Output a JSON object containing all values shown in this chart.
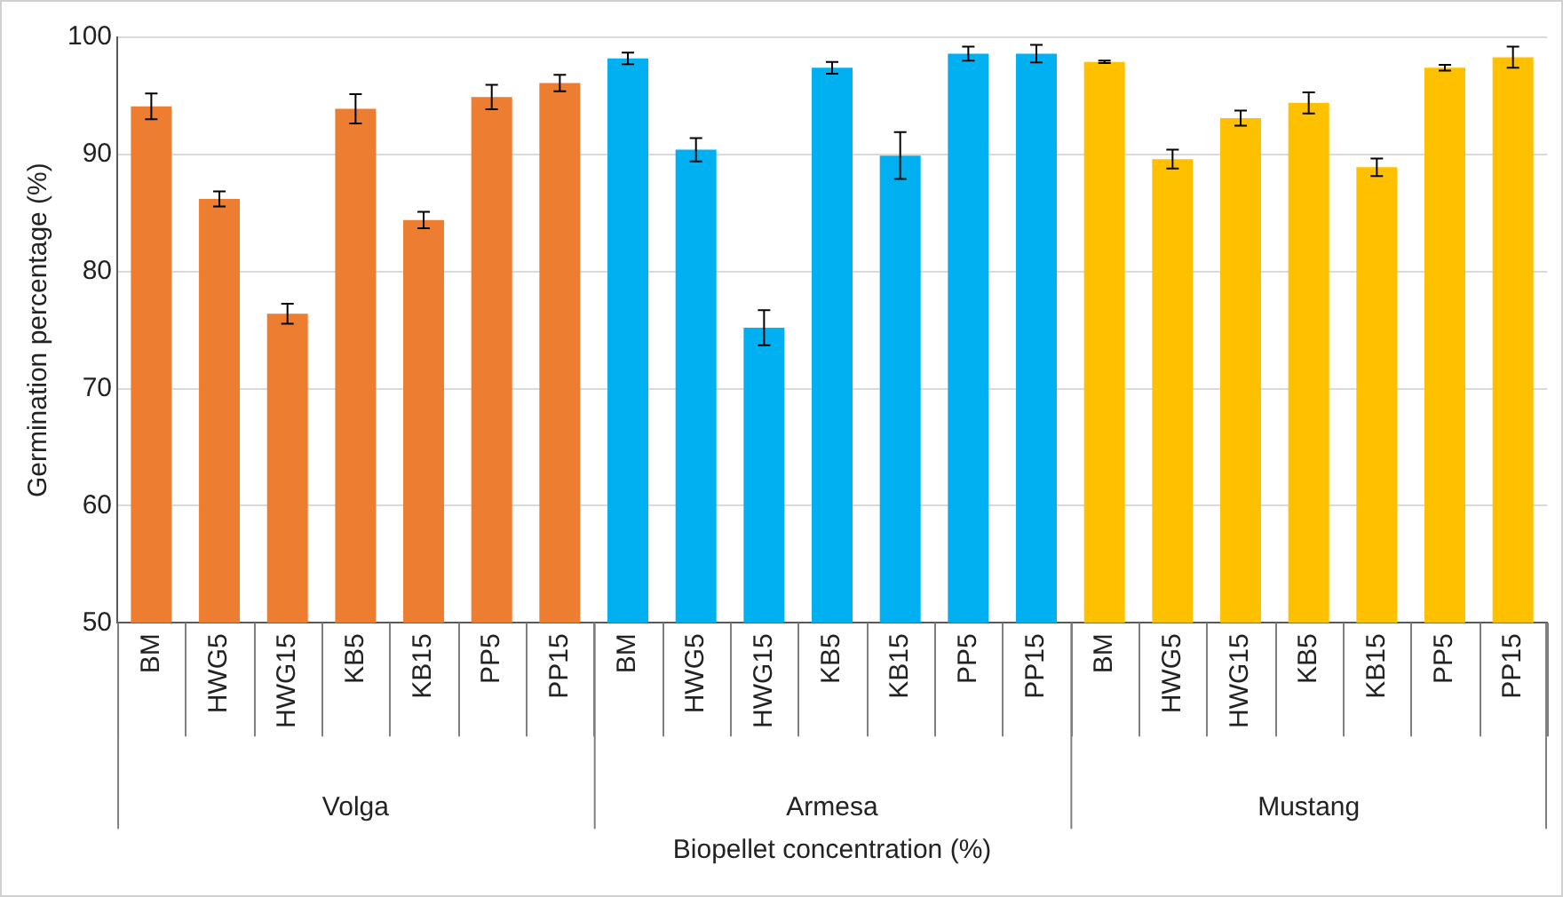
{
  "chart_data": {
    "type": "bar",
    "xlabel": "Biopellet concentration (%)",
    "ylabel": "Germination percentage (%)",
    "categories": [
      "BM",
      "HWG5",
      "HWG15",
      "KB5",
      "KB15",
      "PP5",
      "PP15",
      "BM",
      "HWG5",
      "HWG15",
      "KB5",
      "KB15",
      "PP5",
      "PP15",
      "BM",
      "HWG5",
      "HWG15",
      "KB5",
      "KB15",
      "PP5",
      "PP15"
    ],
    "series": [
      {
        "name": "Volga",
        "color": "#ed7d31",
        "values": [
          94.1,
          86.2,
          76.4,
          93.9,
          84.4,
          94.9,
          96.1,
          null,
          null,
          null,
          null,
          null,
          null,
          null,
          null,
          null,
          null,
          null,
          null,
          null,
          null
        ],
        "errors": [
          1.1,
          0.65,
          0.85,
          1.25,
          0.7,
          1.05,
          0.7,
          null,
          null,
          null,
          null,
          null,
          null,
          null,
          null,
          null,
          null,
          null,
          null,
          null,
          null
        ]
      },
      {
        "name": "Armesa",
        "color": "#00b0f0",
        "values": [
          null,
          null,
          null,
          null,
          null,
          null,
          null,
          98.2,
          90.4,
          75.2,
          97.4,
          89.9,
          98.6,
          98.6,
          null,
          null,
          null,
          null,
          null,
          null,
          null
        ],
        "errors": [
          null,
          null,
          null,
          null,
          null,
          null,
          null,
          0.5,
          1.0,
          1.5,
          0.5,
          2.0,
          0.6,
          0.75,
          null,
          null,
          null,
          null,
          null,
          null,
          null
        ]
      },
      {
        "name": "Mustang",
        "color": "#ffc000",
        "values": [
          null,
          null,
          null,
          null,
          null,
          null,
          null,
          null,
          null,
          null,
          null,
          null,
          null,
          null,
          97.9,
          89.6,
          93.1,
          94.4,
          88.9,
          97.4,
          98.3
        ],
        "errors": [
          null,
          null,
          null,
          null,
          null,
          null,
          null,
          null,
          null,
          null,
          null,
          null,
          null,
          null,
          0.1,
          0.8,
          0.65,
          0.9,
          0.75,
          0.25,
          0.9
        ]
      }
    ],
    "ylim": [
      50,
      100
    ],
    "yticks": [
      50,
      60,
      70,
      80,
      90,
      100
    ],
    "grid": "y"
  }
}
